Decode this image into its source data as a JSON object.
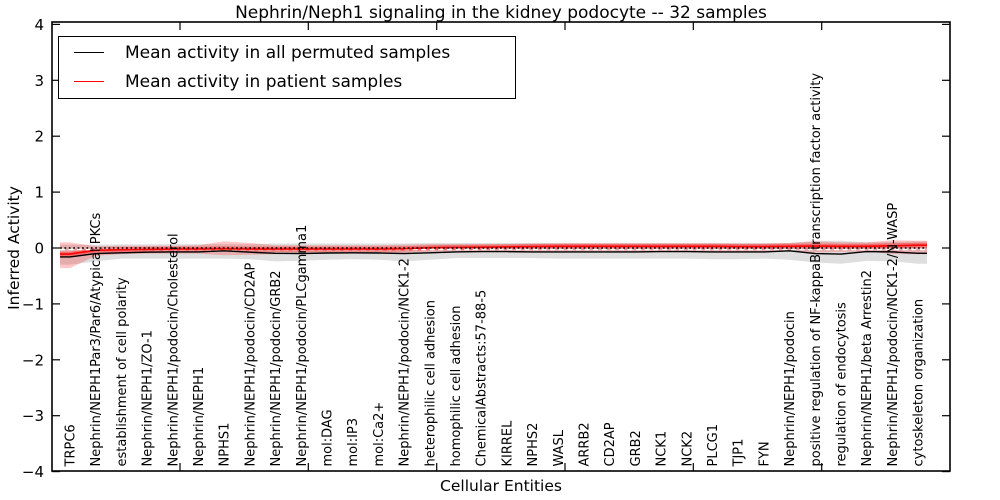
{
  "title": "Nephrin/Neph1 signaling in the kidney podocyte -- 32 samples",
  "legend": {
    "entries": [
      {
        "label": "Mean activity in all permuted samples",
        "color": "#000000"
      },
      {
        "label": "Mean activity in patient samples",
        "color": "#ff0000"
      }
    ]
  },
  "colors": {
    "permuted_line": "#000000",
    "patient_line": "#ff0000",
    "permuted_band": "rgba(0,0,0,0.13)",
    "patient_band": "rgba(255,0,0,0.22)",
    "patient_band_inner": "rgba(255,0,0,0.35)",
    "median_overlay": "#ffffff",
    "zero_baseline": "#000000"
  },
  "chart_data": {
    "type": "line",
    "title": "Nephrin/Neph1 signaling in the kidney podocyte -- 32 samples",
    "xlabel": "Cellular Entities",
    "ylabel": "Inferred Activity",
    "ylim": [
      -4,
      4
    ],
    "grid": false,
    "legend_position": "upper left",
    "y_ticks": [
      4,
      3,
      2,
      1,
      0,
      -1,
      -2,
      -3,
      -4
    ],
    "y_tick_labels": [
      "4",
      "3",
      "2",
      "1",
      "0",
      "−1",
      "−2",
      "−3",
      "−4"
    ],
    "categories": [
      "TRPC6",
      "Nephrin/NEPH1Par3/Par6/Atypical PKCs",
      "establishment of cell polarity",
      "Nephrin/NEPH1/ZO-1",
      "Nephrin/NEPH1/podocin/Cholesterol",
      "Nephrin/NEPH1",
      "NPHS1",
      "Nephrin/NEPH1/podocin/CD2AP",
      "Nephrin/NEPH1/podocin/GRB2",
      "Nephrin/NEPH1/podocin/PLCgamma1",
      "mol:DAG",
      "mol:IP3",
      "mol:Ca2+",
      "Nephrin/NEPH1/podocin/NCK1-2",
      "heterophilic cell adhesion",
      "homophilic cell adhesion",
      "ChemicalAbstracts:57-88-5",
      "KIRREL",
      "NPHS2",
      "WASL",
      "ARRB2",
      "CD2AP",
      "GRB2",
      "NCK1",
      "NCK2",
      "PLCG1",
      "TJP1",
      "FYN",
      "Nephrin/NEPH1/podocin",
      "positive regulation of NF-kappaB transcription factor activity",
      "regulation of endocytosis",
      "Nephrin/NEPH1/beta Arrestin2",
      "Nephrin/NEPH1/podocin/NCK1-2/N-WASP",
      "cytoskeleton organization"
    ],
    "series": [
      {
        "name": "Mean activity in all permuted samples",
        "color": "#000000",
        "style": "solid",
        "values": [
          -0.16,
          -0.1,
          -0.085,
          -0.075,
          -0.07,
          -0.07,
          -0.05,
          -0.075,
          -0.095,
          -0.1,
          -0.09,
          -0.085,
          -0.09,
          -0.1,
          -0.085,
          -0.07,
          -0.065,
          -0.065,
          -0.07,
          -0.07,
          -0.07,
          -0.07,
          -0.07,
          -0.065,
          -0.065,
          -0.07,
          -0.07,
          -0.07,
          -0.05,
          -0.1,
          -0.11,
          -0.065,
          -0.07,
          -0.095
        ]
      },
      {
        "name": "Mean activity in patient samples",
        "color": "#ff0000",
        "style": "solid",
        "values": [
          -0.11,
          -0.04,
          -0.03,
          -0.025,
          -0.02,
          -0.02,
          -0.015,
          -0.02,
          -0.02,
          -0.02,
          -0.02,
          -0.02,
          -0.02,
          -0.015,
          0.005,
          0.01,
          0.015,
          0.02,
          0.025,
          0.03,
          0.03,
          0.03,
          0.03,
          0.03,
          0.03,
          0.03,
          0.025,
          0.025,
          0.03,
          0.035,
          0.03,
          0.03,
          0.04,
          0.05
        ]
      }
    ],
    "bands": [
      {
        "name": "permuted samples range",
        "color": "rgba(0,0,0,0.13)",
        "upper": [
          0.06,
          0.06,
          0.065,
          0.065,
          0.07,
          0.07,
          0.07,
          0.07,
          0.08,
          0.08,
          0.08,
          0.08,
          0.08,
          0.08,
          0.09,
          0.09,
          0.09,
          0.09,
          0.09,
          0.09,
          0.09,
          0.09,
          0.09,
          0.09,
          0.09,
          0.09,
          0.09,
          0.09,
          0.09,
          0.13,
          0.13,
          0.1,
          0.11,
          0.12
        ],
        "lower": [
          -0.3,
          -0.24,
          -0.19,
          -0.19,
          -0.19,
          -0.19,
          -0.19,
          -0.2,
          -0.24,
          -0.23,
          -0.21,
          -0.2,
          -0.21,
          -0.24,
          -0.21,
          -0.18,
          -0.18,
          -0.18,
          -0.18,
          -0.19,
          -0.19,
          -0.19,
          -0.19,
          -0.19,
          -0.19,
          -0.2,
          -0.2,
          -0.19,
          -0.21,
          -0.26,
          -0.28,
          -0.23,
          -0.24,
          -0.28
        ]
      },
      {
        "name": "patient samples range",
        "color": "rgba(255,0,0,0.22)",
        "upper": [
          0.1,
          0.03,
          0.04,
          0.04,
          0.04,
          0.05,
          0.12,
          0.09,
          0.05,
          0.05,
          0.05,
          0.05,
          0.05,
          0.06,
          0.07,
          0.07,
          0.07,
          0.07,
          0.08,
          0.08,
          0.08,
          0.08,
          0.08,
          0.08,
          0.08,
          0.08,
          0.08,
          0.08,
          0.09,
          0.12,
          0.1,
          0.1,
          0.14,
          0.13
        ],
        "lower": [
          -0.36,
          -0.14,
          -0.11,
          -0.1,
          -0.1,
          -0.1,
          -0.13,
          -0.12,
          -0.11,
          -0.1,
          -0.1,
          -0.1,
          -0.1,
          -0.09,
          -0.07,
          -0.06,
          -0.06,
          -0.06,
          -0.06,
          -0.06,
          -0.06,
          -0.06,
          -0.07,
          -0.06,
          -0.06,
          -0.06,
          -0.07,
          -0.07,
          -0.06,
          -0.08,
          -0.07,
          -0.06,
          -0.11,
          -0.11
        ]
      }
    ],
    "inner_band_halfwidth": 0.045,
    "reference_lines": [
      {
        "name": "zero baseline",
        "style": "dotted",
        "color": "#000000",
        "value": 0.0
      },
      {
        "name": "median overlay",
        "style": "dashed",
        "color": "#ffffff",
        "value": -0.025
      }
    ]
  }
}
